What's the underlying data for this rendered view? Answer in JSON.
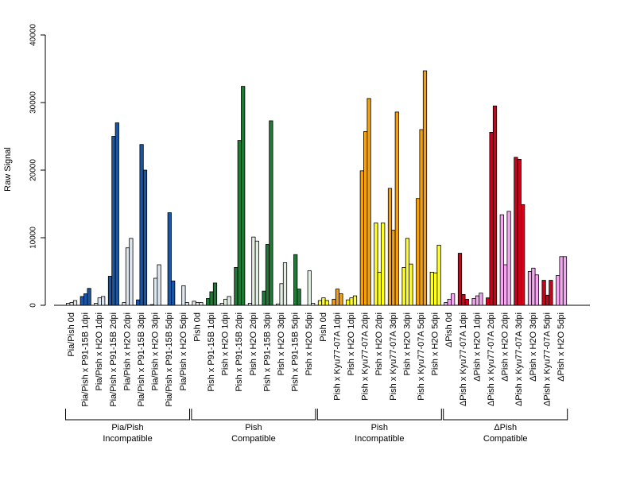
{
  "chart_data": {
    "type": "bar",
    "ylabel": "Raw Signal",
    "ylim": [
      0,
      40000
    ],
    "yticks": [
      "0",
      "10000",
      "20000",
      "30000",
      "40000"
    ],
    "bar_stroke": "#000000",
    "categories": [
      "Pia/Pish 0d",
      "Pia/Pish x P91-15B 1dpi",
      "Pia/Pish x H2O 1dpi",
      "Pia/Pish x P91-15B 2dpi",
      "Pia/Pish x H2O 2dpi",
      "Pia/Pish x P91-15B 3dpi",
      "Pia/Pish x H2O 3dpi",
      "Pia/Pish x P91-15B 5dpi",
      "Pia/Pish x H2O 5dpi",
      "Pish 0d",
      "Pish x P91-15B 1dpi",
      "Pish x H2O 1dpi",
      "Pish x P91-15B 2dpi",
      "Pish x H2O 2dpi",
      "Pish x P91-15B 3dpi",
      "Pish x H2O 3dpi",
      "Pish x P91-15B 5dpi",
      "Pish x H2O 5dpi",
      "Pish 0d",
      "Pish x Kyu77-07A 1dpi",
      "Pish x H2O 1dpi",
      "Pish x Kyu77-07A 2dpi",
      "Pish x H2O 2dpi",
      "Pish x Kyu77-07A 3dpi",
      "Pish x H2O 3dpi",
      "Pish x Kyu77-07A 5dpi",
      "Pish x H2O 5dpi",
      "ΔPish 0d",
      "ΔPish x Kyu77-07A 1dpi",
      "ΔPish x H2O 1dpi",
      "ΔPish x Kyu77-07A 2dpi",
      "ΔPish x H2O 2dpi",
      "ΔPish x Kyu77-07A 3dpi",
      "ΔPish x H2O 3dpi",
      "ΔPish x Kyu77-07A 5dpi",
      "ΔPish x H2O 5dpi"
    ],
    "values": [
      [
        300,
        400,
        700
      ],
      [
        1300,
        1700,
        2500
      ],
      [
        300,
        1100,
        1300
      ],
      [
        4300,
        25000,
        27000
      ],
      [
        400,
        8500,
        9900
      ],
      [
        800,
        23800,
        20000
      ],
      [
        100,
        4000,
        6000
      ],
      [
        0,
        13700,
        3600
      ],
      [
        0,
        2900,
        400
      ],
      [
        600,
        400,
        400
      ],
      [
        1000,
        2000,
        3300
      ],
      [
        300,
        900,
        1300
      ],
      [
        5600,
        24400,
        32400
      ],
      [
        300,
        10100,
        9500
      ],
      [
        2100,
        9000,
        27300
      ],
      [
        200,
        3200,
        6300
      ],
      [
        0,
        7500,
        2400
      ],
      [
        0,
        5100,
        300
      ],
      [
        700,
        1100,
        700
      ],
      [
        900,
        2400,
        1700
      ],
      [
        800,
        1100,
        1400
      ],
      [
        19900,
        25700,
        30600
      ],
      [
        12200,
        4900,
        12200
      ],
      [
        17300,
        11100,
        28600
      ],
      [
        5600,
        9900,
        6100
      ],
      [
        15800,
        26000,
        34700
      ],
      [
        4900,
        4800,
        8900
      ],
      [
        400,
        900,
        1700
      ],
      [
        7700,
        1600,
        900
      ],
      [
        1000,
        1400,
        1800
      ],
      [
        1100,
        25600,
        29500
      ],
      [
        13400,
        6000,
        13900
      ],
      [
        21900,
        21600,
        14900
      ],
      [
        5000,
        5500,
        4500
      ],
      [
        3700,
        1500,
        3700
      ],
      [
        4400,
        7200,
        7200
      ]
    ],
    "category_colors": [
      "#e6e6e6",
      "#1a56a4",
      "#dbe6f1",
      "#1a56a4",
      "#dbe6f1",
      "#1a56a4",
      "#dbe6f1",
      "#1a56a4",
      "#dbe6f1",
      "#e6e6e6",
      "#1f7a35",
      "#e2efe2",
      "#1f7a35",
      "#e2efe2",
      "#1f7a35",
      "#e2efe2",
      "#1f7a35",
      "#e2efe2",
      "#ffff22",
      "#f2a00f",
      "#ffff22",
      "#f2a00f",
      "#ffff22",
      "#f2a00f",
      "#ffff22",
      "#f2a00f",
      "#ffff22",
      "#f4a6f0",
      "#d0021b",
      "#f4a6f0",
      "#d0021b",
      "#f4a6f0",
      "#d0021b",
      "#f4a6f0",
      "#d0021b",
      "#f4a6f0"
    ],
    "groups": [
      {
        "line1": "Pia/Pish",
        "line2": "Incompatible",
        "start": 0,
        "end": 8
      },
      {
        "line1": "Pish",
        "line2": "Compatible",
        "start": 9,
        "end": 17
      },
      {
        "line1": "Pish",
        "line2": "Incompatible",
        "start": 18,
        "end": 26
      },
      {
        "line1": "ΔPish",
        "line2": "Compatible",
        "start": 27,
        "end": 35
      }
    ]
  }
}
